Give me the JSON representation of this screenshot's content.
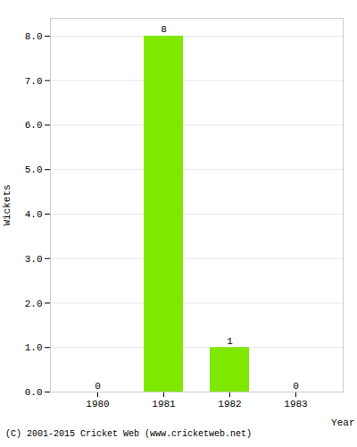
{
  "chart_data": {
    "type": "bar",
    "categories": [
      "1980",
      "1981",
      "1982",
      "1983"
    ],
    "values": [
      0,
      8,
      1,
      0
    ],
    "color": "#7FE800",
    "xlabel": "Year",
    "ylabel": "Wickets",
    "ylim": [
      0.0,
      8.4
    ],
    "yticks": [
      {
        "value": 0,
        "label": "0.0"
      },
      {
        "value": 1,
        "label": "1.0"
      },
      {
        "value": 2,
        "label": "2.0"
      },
      {
        "value": 3,
        "label": "3.0"
      },
      {
        "value": 4,
        "label": "4.0"
      },
      {
        "value": 5,
        "label": "5.0"
      },
      {
        "value": 6,
        "label": "6.0"
      },
      {
        "value": 7,
        "label": "7.0"
      },
      {
        "value": 8,
        "label": "8.0"
      }
    ],
    "grid": true,
    "data_labels": true,
    "annotations": [
      "(C) 2001-2015 Cricket Web (www.cricketweb.net)"
    ]
  }
}
